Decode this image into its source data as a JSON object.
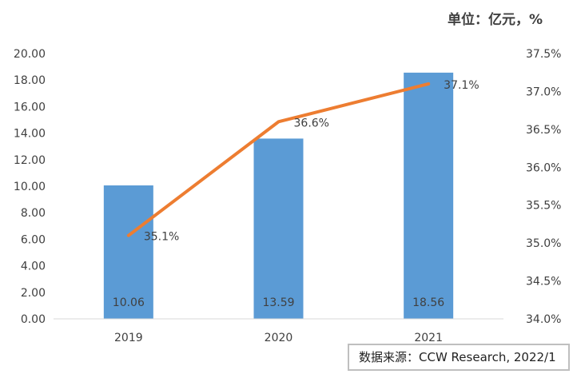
{
  "unit_label": "单位：亿元，%",
  "source_note": "数据来源：CCW Research, 2022/1",
  "colors": {
    "bar": "#5b9bd5",
    "line": "#ed7d31",
    "axis": "#d9d9d9",
    "text": "#404040"
  },
  "chart_data": {
    "type": "bar+line",
    "categories": [
      "2019",
      "2020",
      "2021"
    ],
    "series": [
      {
        "type": "bar",
        "axis": "left",
        "values": [
          10.06,
          13.59,
          18.56
        ],
        "labels": [
          "10.06",
          "13.59",
          "18.56"
        ]
      },
      {
        "type": "line",
        "axis": "right",
        "values": [
          35.1,
          36.6,
          37.1
        ],
        "labels": [
          "35.1%",
          "36.6%",
          "37.1%"
        ]
      }
    ],
    "left_axis": {
      "ylim": [
        0,
        20
      ],
      "ticks": [
        "0.00",
        "2.00",
        "4.00",
        "6.00",
        "8.00",
        "10.00",
        "12.00",
        "14.00",
        "16.00",
        "18.00",
        "20.00"
      ]
    },
    "right_axis": {
      "ylim": [
        34.0,
        37.5
      ],
      "ticks": [
        "34.0%",
        "34.5%",
        "35.0%",
        "35.5%",
        "36.0%",
        "36.5%",
        "37.0%",
        "37.5%"
      ]
    },
    "grid": false,
    "legend": "none"
  }
}
